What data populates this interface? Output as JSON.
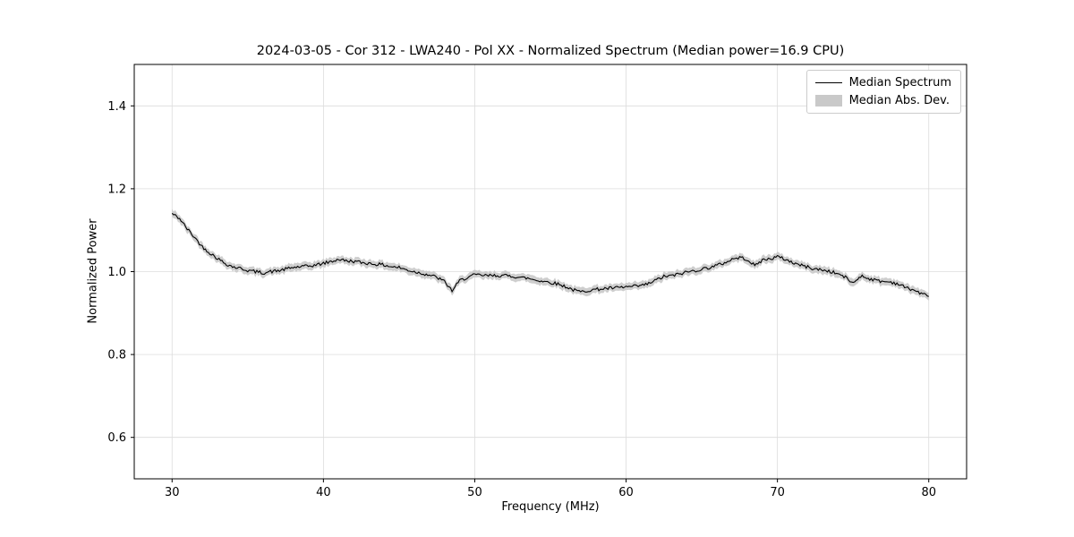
{
  "chart_data": {
    "type": "line",
    "title": "2024-03-05 - Cor 312 - LWA240 - Pol XX - Normalized Spectrum (Median power=16.9 CPU)",
    "xlabel": "Frequency (MHz)",
    "ylabel": "Normalized Power",
    "xlim": [
      27.5,
      82.5
    ],
    "ylim": [
      0.5,
      1.5
    ],
    "xticks": [
      30,
      40,
      50,
      60,
      70,
      80
    ],
    "yticks": [
      0.6,
      0.8,
      1.0,
      1.2,
      1.4
    ],
    "grid": true,
    "grid_color": "#dcdcdc",
    "background": "#ffffff",
    "band_color": "#c9c9c9",
    "band_halfwidth": 0.009,
    "noise_amplitude": 0.004,
    "legend": {
      "position": "upper right",
      "items": [
        {
          "label": "Median Spectrum",
          "type": "line",
          "color": "#000000"
        },
        {
          "label": "Median Abs. Dev.",
          "type": "band",
          "color": "#c9c9c9"
        }
      ]
    },
    "series": [
      {
        "name": "Median Spectrum",
        "color": "#000000",
        "x_start": 30,
        "x_step": 0.5,
        "y": [
          1.14,
          1.128,
          1.103,
          1.082,
          1.06,
          1.045,
          1.032,
          1.02,
          1.012,
          1.008,
          1.003,
          1.0,
          0.997,
          1.0,
          1.002,
          1.006,
          1.01,
          1.012,
          1.013,
          1.016,
          1.02,
          1.024,
          1.03,
          1.026,
          1.025,
          1.022,
          1.02,
          1.018,
          1.016,
          1.012,
          1.01,
          1.004,
          1.0,
          0.996,
          0.992,
          0.986,
          0.976,
          0.954,
          0.978,
          0.986,
          0.992,
          0.991,
          0.99,
          0.991,
          0.99,
          0.989,
          0.986,
          0.984,
          0.98,
          0.977,
          0.974,
          0.97,
          0.964,
          0.956,
          0.951,
          0.955,
          0.957,
          0.959,
          0.96,
          0.961,
          0.963,
          0.964,
          0.966,
          0.971,
          0.98,
          0.988,
          0.99,
          0.994,
          0.999,
          1.002,
          1.006,
          1.01,
          1.015,
          1.021,
          1.03,
          1.034,
          1.03,
          1.014,
          1.028,
          1.031,
          1.036,
          1.03,
          1.022,
          1.016,
          1.011,
          1.006,
          1.004,
          1.0,
          0.995,
          0.986,
          0.972,
          0.99,
          0.984,
          0.979,
          0.976,
          0.975,
          0.97,
          0.961,
          0.956,
          0.947,
          0.94
        ]
      }
    ]
  }
}
